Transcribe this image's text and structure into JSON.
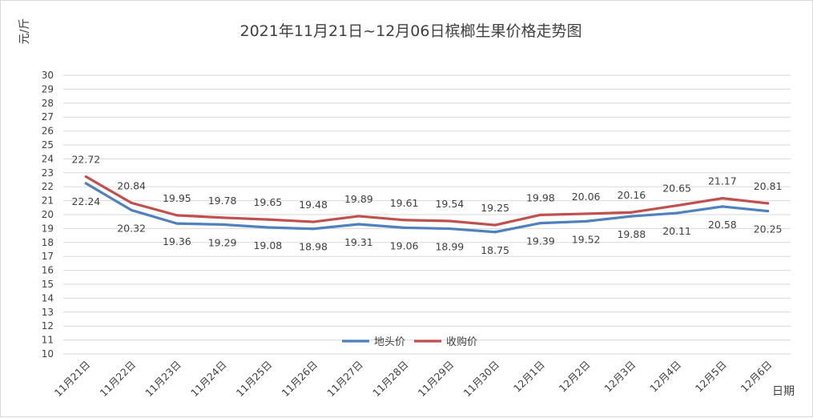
{
  "chart_data": {
    "type": "line",
    "title": "2021年11月21日~12月06日槟榔生果价格走势图",
    "ylabel": "元/斤",
    "xlabel": "日期",
    "ylim": [
      10,
      30
    ],
    "ystep": 1,
    "grid": true,
    "legend_position": "bottom-center",
    "categories": [
      "11月21日",
      "11月22日",
      "11月23日",
      "11月24日",
      "11月25日",
      "11月26日",
      "11月27日",
      "11月28日",
      "11月29日",
      "11月30日",
      "12月1日",
      "12月2日",
      "12月3日",
      "12月4日",
      "12月5日",
      "12月6日"
    ],
    "series": [
      {
        "name": "地头价",
        "color": "#4f81bd",
        "label_position": "below",
        "values": [
          22.24,
          20.32,
          19.36,
          19.29,
          19.08,
          18.98,
          19.31,
          19.06,
          18.99,
          18.75,
          19.39,
          19.52,
          19.88,
          20.11,
          20.58,
          20.25
        ]
      },
      {
        "name": "收购价",
        "color": "#c0504d",
        "label_position": "above",
        "values": [
          22.72,
          20.84,
          19.95,
          19.78,
          19.65,
          19.48,
          19.89,
          19.61,
          19.54,
          19.25,
          19.98,
          20.06,
          20.16,
          20.65,
          21.17,
          20.81
        ]
      }
    ]
  }
}
